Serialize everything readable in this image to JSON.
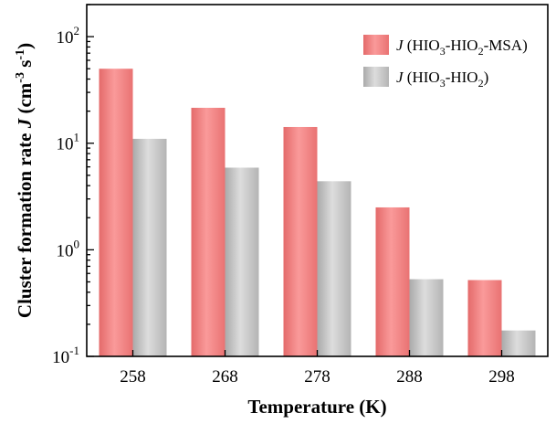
{
  "chart_data": {
    "type": "bar",
    "categories": [
      "258",
      "268",
      "278",
      "288",
      "298"
    ],
    "series": [
      {
        "name_italic": "J",
        "name_parts": [
          " (HIO",
          "3",
          "-HIO",
          "2",
          "-MSA)"
        ],
        "values": [
          50,
          21.5,
          14.2,
          2.5,
          0.52
        ],
        "color": "#f48585"
      },
      {
        "name_italic": "J",
        "name_parts": [
          " (HIO",
          "3",
          "-HIO",
          "2",
          ")"
        ],
        "values": [
          11,
          5.9,
          4.4,
          0.53,
          0.175
        ],
        "color": "#c6c6c6"
      }
    ],
    "xlabel": "Temperature (K)",
    "ylabel_parts": {
      "pre": "Cluster formation rate ",
      "italic": "J",
      "mid": " (cm",
      "sup1": "-3",
      "mid2": " s",
      "sup2": "-1",
      "post": ")"
    },
    "yscale": "log",
    "ylim": [
      0.1,
      200
    ],
    "yticks": [
      {
        "base": "10",
        "exp": "-1",
        "value": 0.1
      },
      {
        "base": "10",
        "exp": "0",
        "value": 1
      },
      {
        "base": "10",
        "exp": "1",
        "value": 10
      },
      {
        "base": "10",
        "exp": "2",
        "value": 100
      }
    ],
    "grid": false,
    "legend": "top-right"
  }
}
